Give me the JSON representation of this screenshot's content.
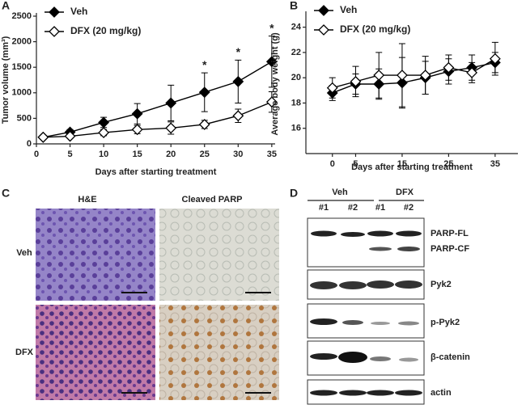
{
  "chart_data": [
    {
      "type": "line",
      "panel": "A",
      "xlabel": "Days after starting treatment",
      "ylabel": "Tumor volume (mm³)",
      "x": [
        1,
        5,
        10,
        15,
        20,
        25,
        30,
        35
      ],
      "series": [
        {
          "name": "Veh",
          "color": "#000000",
          "marker": "filled-diamond",
          "values": [
            130,
            230,
            420,
            590,
            800,
            1010,
            1220,
            1610
          ],
          "errors": [
            30,
            50,
            100,
            200,
            350,
            380,
            420,
            500
          ]
        },
        {
          "name": "DFX (20 mg/kg)",
          "color": "#000000",
          "marker": "open-diamond",
          "values": [
            130,
            150,
            220,
            280,
            310,
            380,
            550,
            820
          ],
          "errors": [
            20,
            30,
            60,
            80,
            120,
            80,
            130,
            200
          ]
        }
      ],
      "annotations": [
        {
          "text": "*",
          "x": 25
        },
        {
          "text": "*",
          "x": 30
        },
        {
          "text": "*",
          "x": 35
        }
      ],
      "xlim": [
        0,
        35.5
      ],
      "xticks": [
        0,
        5,
        10,
        15,
        20,
        25,
        30,
        35
      ],
      "ylim": [
        0,
        2500
      ],
      "yticks": [
        0,
        500,
        1000,
        1500,
        2000,
        2500
      ],
      "legend": "upper left"
    },
    {
      "type": "line",
      "panel": "B",
      "xlabel": "Days after starting treatment",
      "ylabel": "Average body weight (g)",
      "x": [
        0,
        5,
        10,
        15,
        20,
        25,
        30,
        35
      ],
      "series": [
        {
          "name": "Veh",
          "color": "#000000",
          "marker": "filled-diamond",
          "values": [
            18.8,
            19.5,
            19.5,
            19.6,
            20.0,
            20.5,
            20.8,
            21.2
          ],
          "errors": [
            0.6,
            0.8,
            1.2,
            2.0,
            1.3,
            1.0,
            1.0,
            0.8
          ]
        },
        {
          "name": "DFX (20 mg/kg)",
          "color": "#000000",
          "marker": "open-diamond",
          "values": [
            19.2,
            19.7,
            20.2,
            20.2,
            20.2,
            20.8,
            20.4,
            21.5
          ],
          "errors": [
            0.8,
            1.2,
            1.8,
            2.5,
            1.5,
            1.0,
            0.8,
            1.3
          ]
        }
      ],
      "xlim": [
        -5.7,
        39.9
      ],
      "xticks": [
        0,
        5,
        15,
        25,
        35
      ],
      "ylim": [
        14,
        25
      ],
      "yticks": [
        16,
        18,
        20,
        22,
        24
      ],
      "legend": "upper left"
    }
  ],
  "panel_c": {
    "label": "C",
    "columns": [
      "H&E",
      "Cleaved PARP"
    ],
    "rows": [
      "Veh",
      "DFX"
    ]
  },
  "panel_d": {
    "label": "D",
    "groups": [
      "Veh",
      "DFX"
    ],
    "lanes": [
      "#1",
      "#2",
      "#1",
      "#2"
    ],
    "bands": [
      "PARP-FL",
      "PARP-CF",
      "Pyk2",
      "p-Pyk2",
      "β-catenin",
      "actin"
    ]
  }
}
